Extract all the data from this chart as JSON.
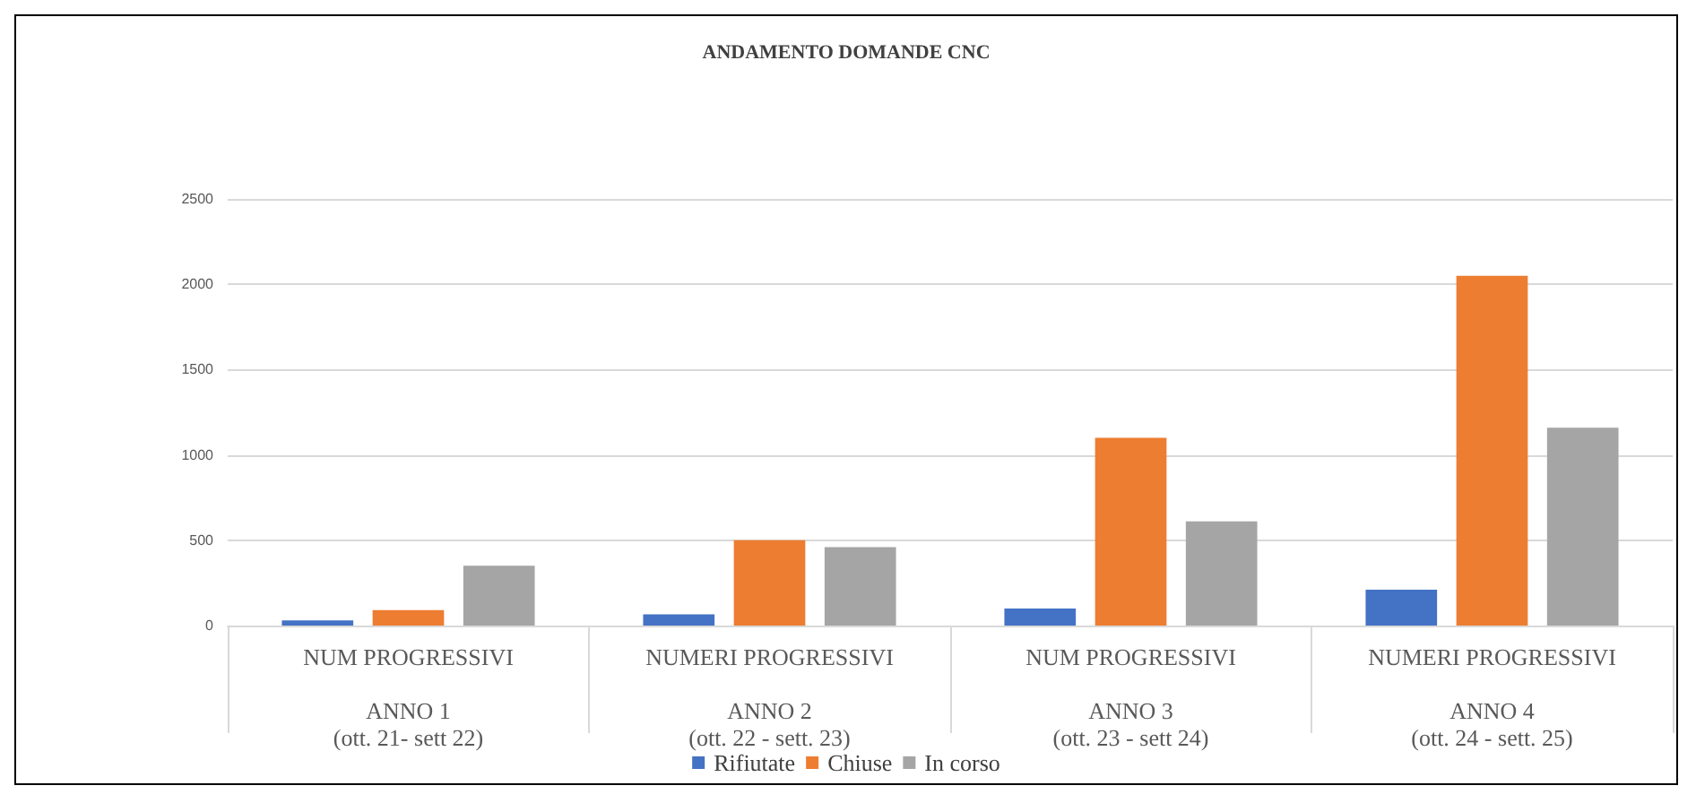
{
  "chart_data": {
    "type": "bar",
    "title": "ANDAMENTO DOMANDE CNC",
    "categories": [
      "NUM PROGRESSIVI\n\nANNO 1\n(ott. 21- sett 22)",
      "NUMERI PROGRESSIVI\n\nANNO 2\n(ott. 22 - sett. 23)",
      "NUM PROGRESSIVI\n\nANNO 3\n(ott. 23 - sett 24)",
      "NUMERI PROGRESSIVI\n\nANNO 4\n(ott. 24 - sett. 25)"
    ],
    "series": [
      {
        "name": "Rifiutate",
        "color": "#4472c4",
        "values": [
          30,
          65,
          100,
          210
        ]
      },
      {
        "name": "Chiuse",
        "color": "#ed7d31",
        "values": [
          90,
          500,
          1100,
          2050
        ]
      },
      {
        "name": "In corso",
        "color": "#a5a5a5",
        "values": [
          350,
          460,
          610,
          1160
        ]
      }
    ],
    "ylim": [
      0,
      2500
    ],
    "yticks": [
      0,
      500,
      1000,
      1500,
      2000,
      2500
    ],
    "grid": "y",
    "legend": "bottom"
  }
}
